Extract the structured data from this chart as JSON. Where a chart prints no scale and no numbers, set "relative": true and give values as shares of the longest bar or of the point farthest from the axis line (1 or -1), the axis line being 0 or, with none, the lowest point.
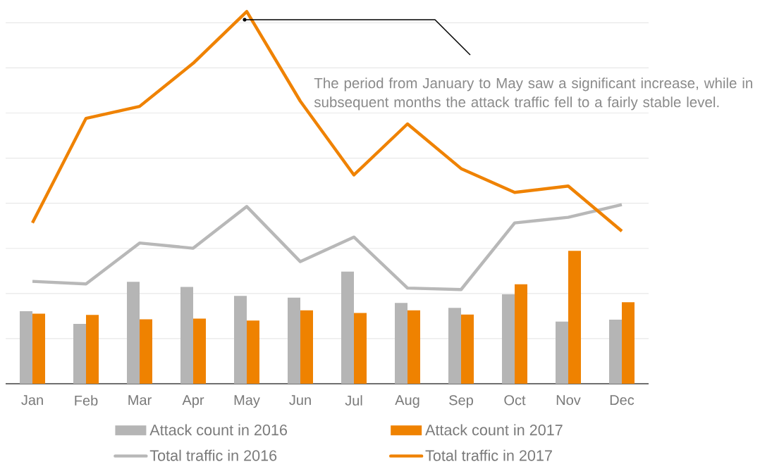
{
  "chart_data": {
    "type": "bar",
    "relative": true,
    "categories": [
      "Jan",
      "Feb",
      "Mar",
      "Apr",
      "May",
      "Jun",
      "Jul",
      "Aug",
      "Sep",
      "Oct",
      "Nov",
      "Dec"
    ],
    "series": [
      {
        "name": "Attack count in 2016",
        "color": "#b5b5b5",
        "values": [
          0.195,
          0.161,
          0.274,
          0.26,
          0.236,
          0.231,
          0.301,
          0.217,
          0.204,
          0.24,
          0.167,
          0.172
        ]
      },
      {
        "name": "Attack count in 2017",
        "color": "#ef8200",
        "values": [
          0.188,
          0.185,
          0.173,
          0.175,
          0.17,
          0.197,
          0.19,
          0.197,
          0.186,
          0.267,
          0.357,
          0.219
        ]
      },
      {
        "name": "Total traffic in 2016",
        "type": "line",
        "color": "#b8b8b8",
        "values": [
          0.275,
          0.268,
          0.378,
          0.364,
          0.476,
          0.328,
          0.394,
          0.257,
          0.253,
          0.432,
          0.447,
          0.481
        ]
      },
      {
        "name": "Total traffic in 2017",
        "type": "line",
        "color": "#ef8200",
        "values": [
          0.432,
          0.713,
          0.745,
          0.861,
          1.0,
          0.759,
          0.561,
          0.698,
          0.578,
          0.514,
          0.531,
          0.41
        ]
      }
    ],
    "grid": "y",
    "legend": "bottom",
    "annotations": [
      "The period from January to May saw a significant increase, while in subsequent months the attack traffic fell to a fairly stable level."
    ]
  }
}
